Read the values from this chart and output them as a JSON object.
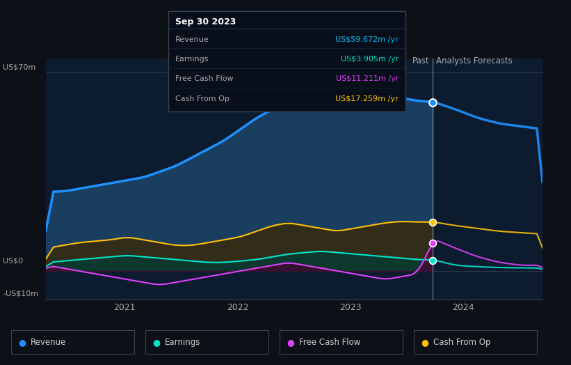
{
  "bg_color": "#0d1117",
  "chart_bg": "#0d1b2e",
  "ylabel_top": "US$70m",
  "ylabel_zero": "US$0",
  "ylabel_neg": "-US$10m",
  "xticks": [
    "2021",
    "2022",
    "2023",
    "2024"
  ],
  "past_label": "Past",
  "forecast_label": "Analysts Forecasts",
  "tooltip_date": "Sep 30 2023",
  "tooltip_items": [
    {
      "label": "Revenue",
      "value": "US$59.672m /yr",
      "color": "#00bfff"
    },
    {
      "label": "Earnings",
      "value": "US$3.905m /yr",
      "color": "#00e5cc"
    },
    {
      "label": "Free Cash Flow",
      "value": "US$11.211m /yr",
      "color": "#e040fb"
    },
    {
      "label": "Cash From Op",
      "value": "US$17.259m /yr",
      "color": "#ffc107"
    }
  ],
  "revenue_color": "#1e90ff",
  "earnings_color": "#00e5cc",
  "fcf_color": "#e040fb",
  "cashop_color": "#ffc107",
  "legend_items": [
    {
      "label": "Revenue",
      "color": "#1e90ff"
    },
    {
      "label": "Earnings",
      "color": "#00e5cc"
    },
    {
      "label": "Free Cash Flow",
      "color": "#e040fb"
    },
    {
      "label": "Cash From Op",
      "color": "#ffc107"
    }
  ]
}
